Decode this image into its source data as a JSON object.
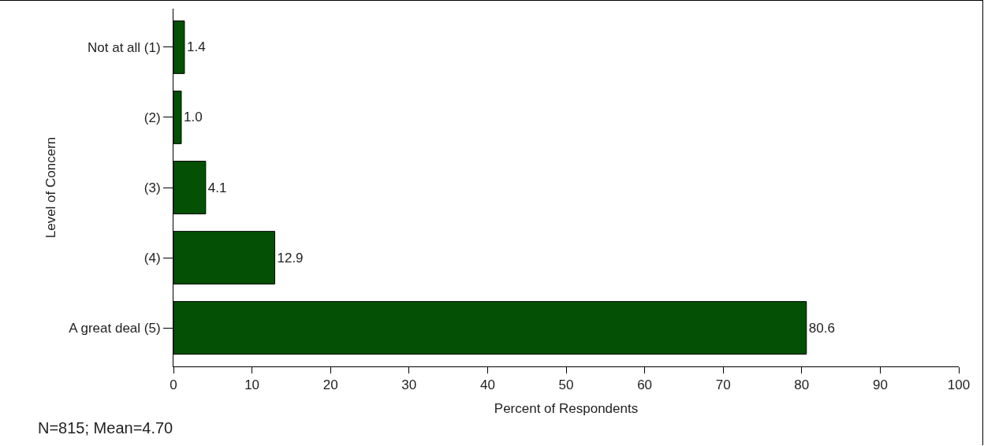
{
  "chart_data": {
    "type": "bar",
    "orientation": "horizontal",
    "xlabel": "Percent of Respondents",
    "ylabel": "Level of Concern",
    "categories": [
      "Not at all (1)",
      "(2)",
      "(3)",
      "(4)",
      "A great deal (5)"
    ],
    "values": [
      1.4,
      1.0,
      4.1,
      12.9,
      80.6
    ],
    "value_labels": [
      "1.4",
      "1.0",
      "4.1",
      "12.9",
      "80.6"
    ],
    "color": "#045004",
    "xlim": [
      0,
      100
    ],
    "xticks": [
      0,
      10,
      20,
      30,
      40,
      50,
      60,
      70,
      80,
      90,
      100
    ],
    "grid": false,
    "legend": false,
    "annotations": [
      "N=815; Mean=4.70"
    ]
  }
}
